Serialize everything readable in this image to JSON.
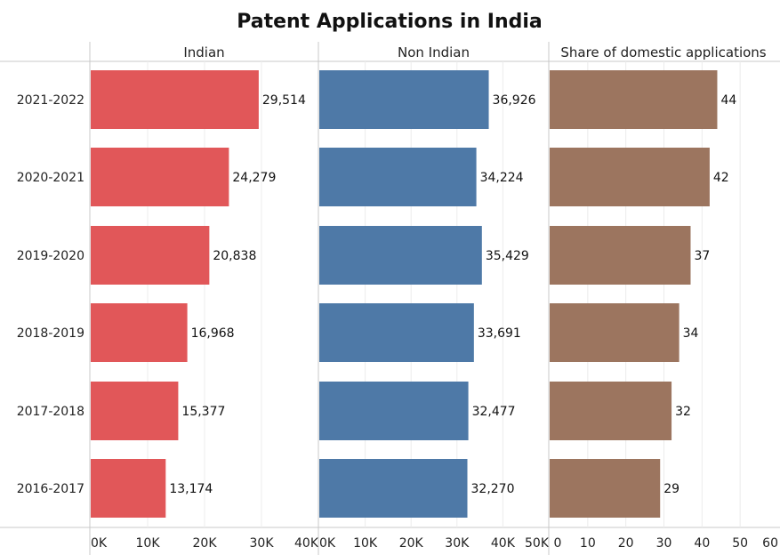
{
  "chart_data": {
    "type": "bar",
    "orientation": "horizontal",
    "title": "Patent Applications in India",
    "categories": [
      "2021-2022",
      "2020-2021",
      "2019-2020",
      "2018-2019",
      "2017-2018",
      "2016-2017"
    ],
    "grid": true,
    "panels": [
      {
        "name": "Indian",
        "color": "#e15759",
        "values": [
          29514,
          24279,
          20838,
          16968,
          15377,
          13174
        ],
        "value_labels": [
          "29,514",
          "24,279",
          "20,838",
          "16,968",
          "15,377",
          "13,174"
        ],
        "xlim": [
          0,
          40000
        ],
        "ticks": [
          0,
          10000,
          20000,
          30000,
          40000
        ],
        "tick_labels": [
          "0K",
          "10K",
          "20K",
          "30K",
          "40K"
        ]
      },
      {
        "name": "Non Indian",
        "color": "#4e79a7",
        "values": [
          36926,
          34224,
          35429,
          33691,
          32477,
          32270
        ],
        "value_labels": [
          "36,926",
          "34,224",
          "35,429",
          "33,691",
          "32,477",
          "32,270"
        ],
        "xlim": [
          0,
          50000
        ],
        "ticks": [
          0,
          10000,
          20000,
          30000,
          40000,
          50000
        ],
        "tick_labels": [
          "0K",
          "10K",
          "20K",
          "30K",
          "40K",
          "50K"
        ]
      },
      {
        "name": "Share of domestic applications",
        "color": "#9c755f",
        "values": [
          44,
          42,
          37,
          34,
          32,
          29
        ],
        "value_labels": [
          "44",
          "42",
          "37",
          "34",
          "32",
          "29"
        ],
        "xlim": [
          0,
          60
        ],
        "ticks": [
          0,
          10,
          20,
          30,
          40,
          50,
          60
        ],
        "tick_labels": [
          "0",
          "10",
          "20",
          "30",
          "40",
          "50",
          "60"
        ]
      }
    ]
  }
}
